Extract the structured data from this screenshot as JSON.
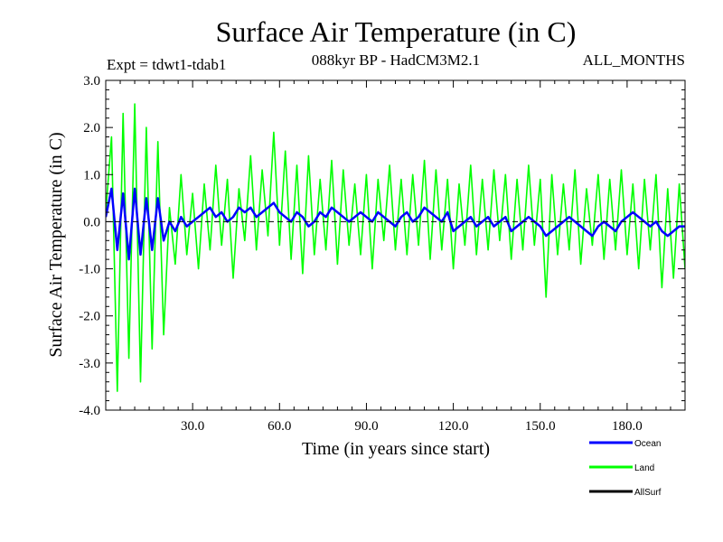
{
  "chart_data": {
    "type": "line",
    "title": "Surface Air Temperature (in C)",
    "subtitle_left": "Expt = tdwt1-tdab1",
    "subtitle_center": "088kyr BP - HadCM3M2.1",
    "subtitle_right": "ALL_MONTHS",
    "xlabel": "Time (in years since start)",
    "ylabel": "Surface Air Temperature (in C)",
    "xlim": [
      0,
      200
    ],
    "ylim": [
      -4.0,
      3.0
    ],
    "xticks": [
      30,
      60,
      90,
      120,
      150,
      180
    ],
    "xtick_labels": [
      "30.0",
      "60.0",
      "90.0",
      "120.0",
      "150.0",
      "180.0"
    ],
    "yticks": [
      3,
      2,
      1,
      0,
      -1,
      -2,
      -3,
      -4
    ],
    "ytick_labels": [
      "3.0",
      "2.0",
      "1.0",
      "0.0",
      "-1.0",
      "-2.0",
      "-3.0",
      "-4.0"
    ],
    "zero_line": "dashed",
    "legend_position": "bottom-right",
    "series": [
      {
        "name": "Land",
        "color": "#00ff00",
        "x": [
          0,
          2,
          4,
          6,
          8,
          10,
          12,
          14,
          16,
          18,
          20,
          22,
          24,
          26,
          28,
          30,
          32,
          34,
          36,
          38,
          40,
          42,
          44,
          46,
          48,
          50,
          52,
          54,
          56,
          58,
          60,
          62,
          64,
          66,
          68,
          70,
          72,
          74,
          76,
          78,
          80,
          82,
          84,
          86,
          88,
          90,
          92,
          94,
          96,
          98,
          100,
          102,
          104,
          106,
          108,
          110,
          112,
          114,
          116,
          118,
          120,
          122,
          124,
          126,
          128,
          130,
          132,
          134,
          136,
          138,
          140,
          142,
          144,
          146,
          148,
          150,
          152,
          154,
          156,
          158,
          160,
          162,
          164,
          166,
          168,
          170,
          172,
          174,
          176,
          178,
          180,
          182,
          184,
          186,
          188,
          190,
          192,
          194,
          196,
          198,
          200
        ],
        "values": [
          0.2,
          1.8,
          -3.6,
          2.3,
          -2.9,
          2.5,
          -3.4,
          2.0,
          -2.7,
          1.7,
          -2.4,
          0.3,
          -0.9,
          1.0,
          -0.7,
          0.6,
          -1.0,
          0.8,
          -0.6,
          1.2,
          -0.5,
          0.9,
          -1.2,
          0.7,
          -0.4,
          1.4,
          -0.6,
          1.1,
          -0.3,
          1.9,
          -0.5,
          1.5,
          -0.8,
          1.2,
          -1.1,
          1.4,
          -0.7,
          0.9,
          -0.6,
          1.3,
          -0.9,
          1.1,
          -0.5,
          0.8,
          -0.7,
          1.0,
          -1.0,
          0.9,
          -0.4,
          1.2,
          -0.6,
          0.9,
          -0.7,
          1.0,
          -0.5,
          1.3,
          -0.8,
          1.1,
          -0.6,
          0.9,
          -1.0,
          0.8,
          -0.5,
          1.2,
          -0.7,
          0.9,
          -0.6,
          1.1,
          -0.4,
          1.0,
          -0.8,
          0.9,
          -0.6,
          1.2,
          -0.5,
          0.9,
          -1.6,
          1.0,
          -0.7,
          0.8,
          -0.6,
          1.1,
          -0.9,
          0.7,
          -0.5,
          1.0,
          -0.8,
          0.9,
          -0.6,
          1.1,
          -0.7,
          0.8,
          -1.0,
          0.9,
          -0.6,
          1.0,
          -1.4,
          0.7,
          -1.2,
          0.8,
          -1.0
        ]
      },
      {
        "name": "Ocean",
        "color": "#0000ff",
        "x": [
          0,
          2,
          4,
          6,
          8,
          10,
          12,
          14,
          16,
          18,
          20,
          22,
          24,
          26,
          28,
          30,
          32,
          34,
          36,
          38,
          40,
          42,
          44,
          46,
          48,
          50,
          52,
          54,
          56,
          58,
          60,
          62,
          64,
          66,
          68,
          70,
          72,
          74,
          76,
          78,
          80,
          82,
          84,
          86,
          88,
          90,
          92,
          94,
          96,
          98,
          100,
          102,
          104,
          106,
          108,
          110,
          112,
          114,
          116,
          118,
          120,
          122,
          124,
          126,
          128,
          130,
          132,
          134,
          136,
          138,
          140,
          142,
          144,
          146,
          148,
          150,
          152,
          154,
          156,
          158,
          160,
          162,
          164,
          166,
          168,
          170,
          172,
          174,
          176,
          178,
          180,
          182,
          184,
          186,
          188,
          190,
          192,
          194,
          196,
          198,
          200
        ],
        "values": [
          0.1,
          0.7,
          -0.6,
          0.6,
          -0.8,
          0.7,
          -0.7,
          0.5,
          -0.6,
          0.5,
          -0.4,
          0.0,
          -0.2,
          0.1,
          -0.1,
          0.0,
          0.1,
          0.2,
          0.3,
          0.1,
          0.2,
          0.0,
          0.1,
          0.3,
          0.2,
          0.3,
          0.1,
          0.2,
          0.3,
          0.4,
          0.2,
          0.1,
          0.0,
          0.2,
          0.1,
          -0.1,
          0.0,
          0.2,
          0.1,
          0.3,
          0.2,
          0.1,
          0.0,
          0.1,
          0.2,
          0.1,
          0.0,
          0.2,
          0.1,
          0.0,
          -0.1,
          0.1,
          0.2,
          0.0,
          0.1,
          0.3,
          0.2,
          0.1,
          0.0,
          0.2,
          -0.2,
          -0.1,
          0.0,
          0.1,
          -0.1,
          0.0,
          0.1,
          -0.1,
          0.0,
          0.1,
          -0.2,
          -0.1,
          0.0,
          0.1,
          0.0,
          -0.1,
          -0.3,
          -0.2,
          -0.1,
          0.0,
          0.1,
          0.0,
          -0.1,
          -0.2,
          -0.3,
          -0.1,
          0.0,
          -0.1,
          -0.2,
          0.0,
          0.1,
          0.2,
          0.1,
          0.0,
          -0.1,
          0.0,
          -0.2,
          -0.3,
          -0.2,
          -0.1,
          -0.1
        ]
      },
      {
        "name": "AllSurf",
        "color": "#000000",
        "x": [],
        "values": []
      }
    ]
  }
}
